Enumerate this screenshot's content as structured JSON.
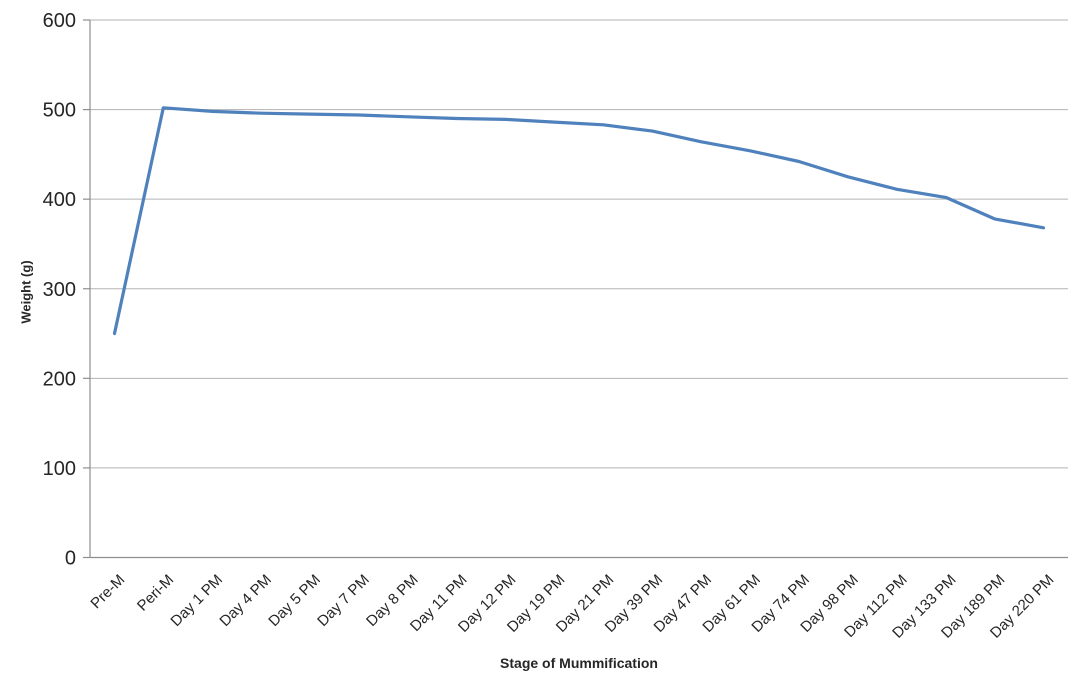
{
  "chart_data": {
    "type": "line",
    "title": "",
    "xlabel": "Stage of Mummification",
    "ylabel": "Weight (g)",
    "categories": [
      "Pre-M",
      "Peri-M",
      "Day 1 PM",
      "Day 4 PM",
      "Day 5 PM",
      "Day 7 PM",
      "Day 8 PM",
      "Day 11 PM",
      "Day 12 PM",
      "Day 19 PM",
      "Day 21 PM",
      "Day 39 PM",
      "Day 47 PM",
      "Day 61 PM",
      "Day 74 PM",
      "Day 98 PM",
      "Day 112 PM",
      "Day 133 PM",
      "Day 189 PM",
      "Day 220 PM"
    ],
    "values": [
      250,
      502,
      498,
      496,
      495,
      494,
      492,
      490,
      489,
      486,
      483,
      476,
      464,
      454,
      442,
      425,
      411,
      402,
      378,
      368
    ],
    "ylim": [
      0,
      600
    ],
    "ytick_step": 100,
    "y_tick_labels": [
      "0",
      "100",
      "200",
      "300",
      "400",
      "500",
      "600"
    ],
    "grid": true,
    "legend_position": "none",
    "line_color": "#4F81BD",
    "gridline_color": "#b3b3b3",
    "axis_color": "#8e8e8e",
    "text_color": "#262626",
    "background_color": "#ffffff"
  }
}
